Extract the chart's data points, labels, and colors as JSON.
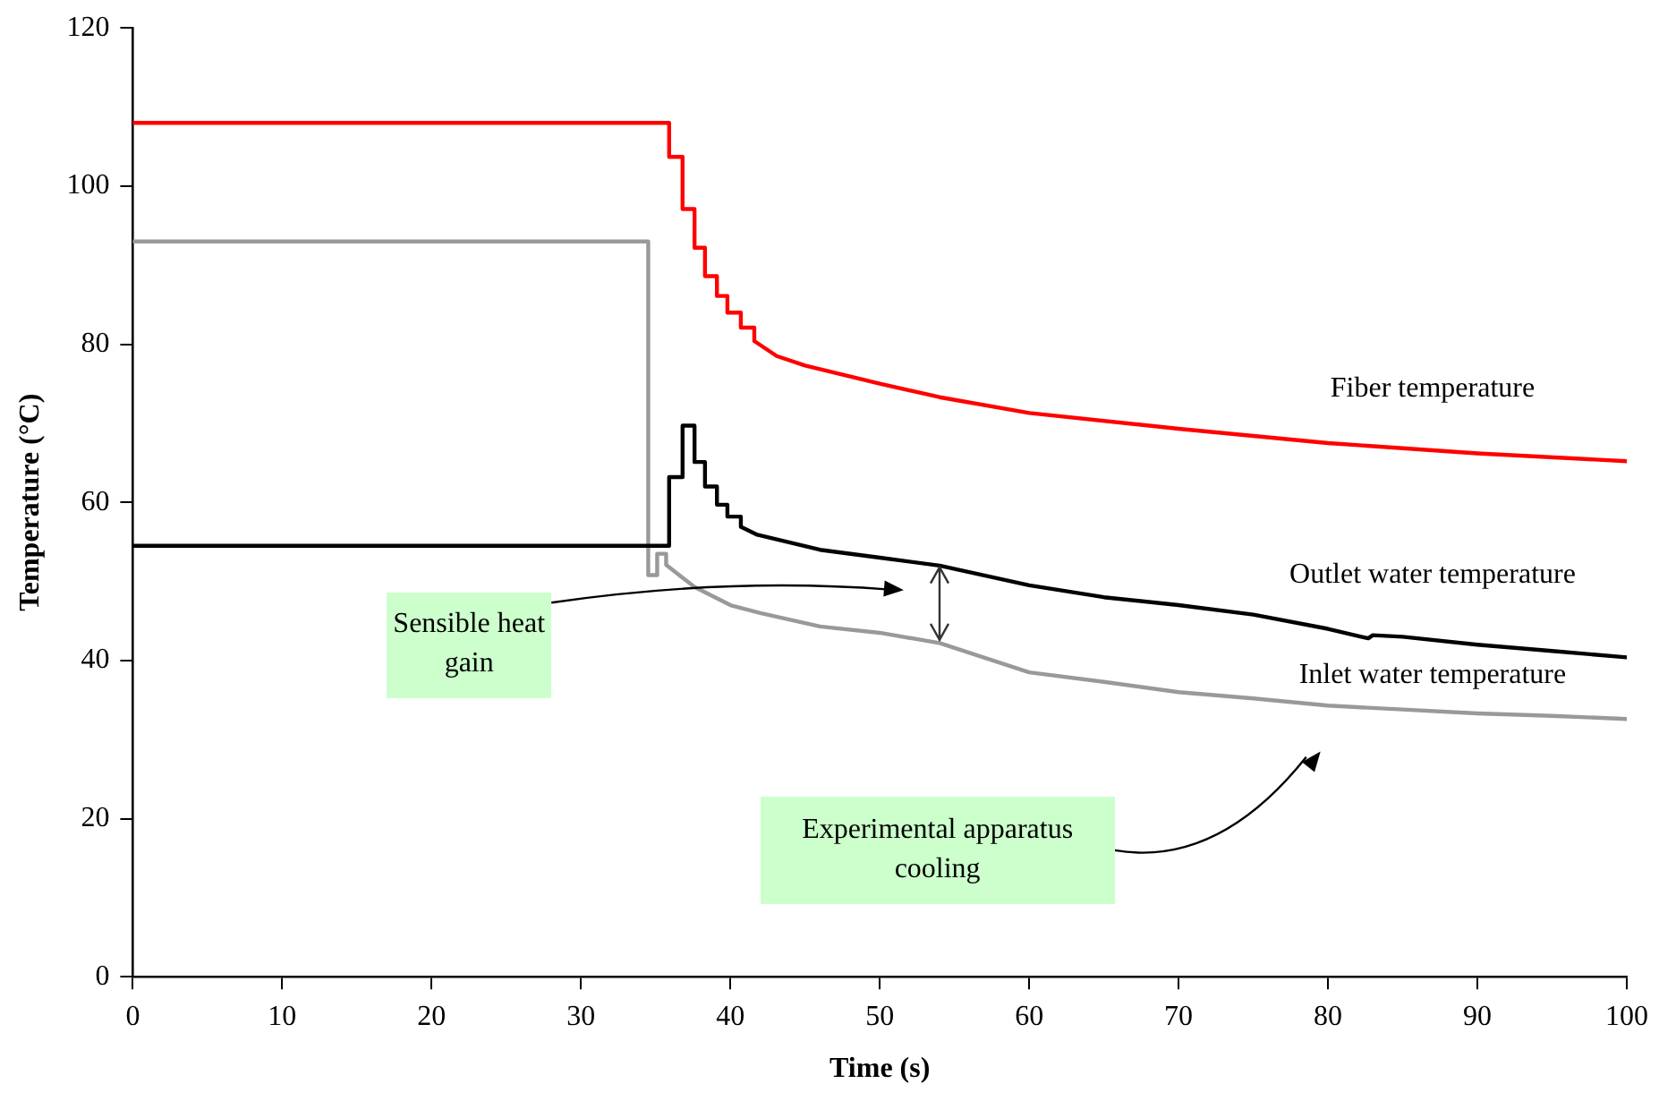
{
  "chart_data": {
    "type": "line",
    "xlabel": "Time (s)",
    "ylabel": "Temperature (°C)",
    "xlim": [
      0,
      100
    ],
    "xticks": [
      0,
      10,
      20,
      30,
      40,
      50,
      60,
      70,
      80,
      90,
      100
    ],
    "ylim": [
      0,
      120
    ],
    "yticks": [
      0,
      20,
      40,
      60,
      80,
      100,
      120
    ],
    "grid": false,
    "legend": false,
    "marker": "none",
    "line_style": "solid",
    "annotations": [
      "Sensible heat gain",
      "Experimental apparatus cooling"
    ],
    "series": [
      {
        "name": "Fiber temperature",
        "color": "#ff0000",
        "x": [
          0,
          35.9,
          35.9,
          36.8,
          36.8,
          37.6,
          37.6,
          38.3,
          38.3,
          39.1,
          39.1,
          39.8,
          39.8,
          40.7,
          40.7,
          41.6,
          41.6,
          43.1,
          45,
          50,
          54,
          60,
          70,
          80,
          90,
          100
        ],
        "values": [
          108,
          108,
          103.7,
          103.7,
          97.1,
          97.1,
          92.2,
          92.2,
          88.6,
          88.6,
          86.1,
          86.1,
          84,
          84,
          82.1,
          82.1,
          80.4,
          78.5,
          77.3,
          75,
          73.3,
          71.3,
          69.3,
          67.5,
          66.2,
          65.2
        ]
      },
      {
        "name": "Outlet water temperature",
        "color": "#000000",
        "x": [
          0,
          35.9,
          35.9,
          36.8,
          36.8,
          37.6,
          37.6,
          38.3,
          38.3,
          39.1,
          39.1,
          39.8,
          39.8,
          40.7,
          40.7,
          41.8,
          46,
          50,
          54,
          60,
          65,
          70,
          75,
          80,
          82.7,
          83,
          85,
          90,
          95,
          100
        ],
        "values": [
          54.5,
          54.5,
          63.2,
          63.2,
          69.7,
          69.7,
          65.1,
          65.1,
          62,
          62,
          59.7,
          59.7,
          58.2,
          58.2,
          56.9,
          55.9,
          54,
          53,
          52,
          49.5,
          48,
          47,
          45.8,
          44,
          42.8,
          43.2,
          43,
          42,
          41.2,
          40.4
        ]
      },
      {
        "name": "Inlet water temperature",
        "color": "#999999",
        "x": [
          0,
          34.5,
          34.5,
          35.1,
          35.1,
          35.7,
          35.7,
          36.5,
          37.6,
          40,
          42,
          46,
          50,
          54,
          60,
          65,
          70,
          75,
          80,
          85,
          90,
          95,
          100
        ],
        "values": [
          93,
          93,
          50.8,
          50.8,
          53.5,
          53.5,
          52.1,
          50.9,
          49.3,
          47,
          46,
          44.3,
          43.5,
          42.2,
          38.5,
          37.3,
          36,
          35.2,
          34.3,
          33.8,
          33.3,
          33,
          32.6
        ]
      }
    ]
  }
}
